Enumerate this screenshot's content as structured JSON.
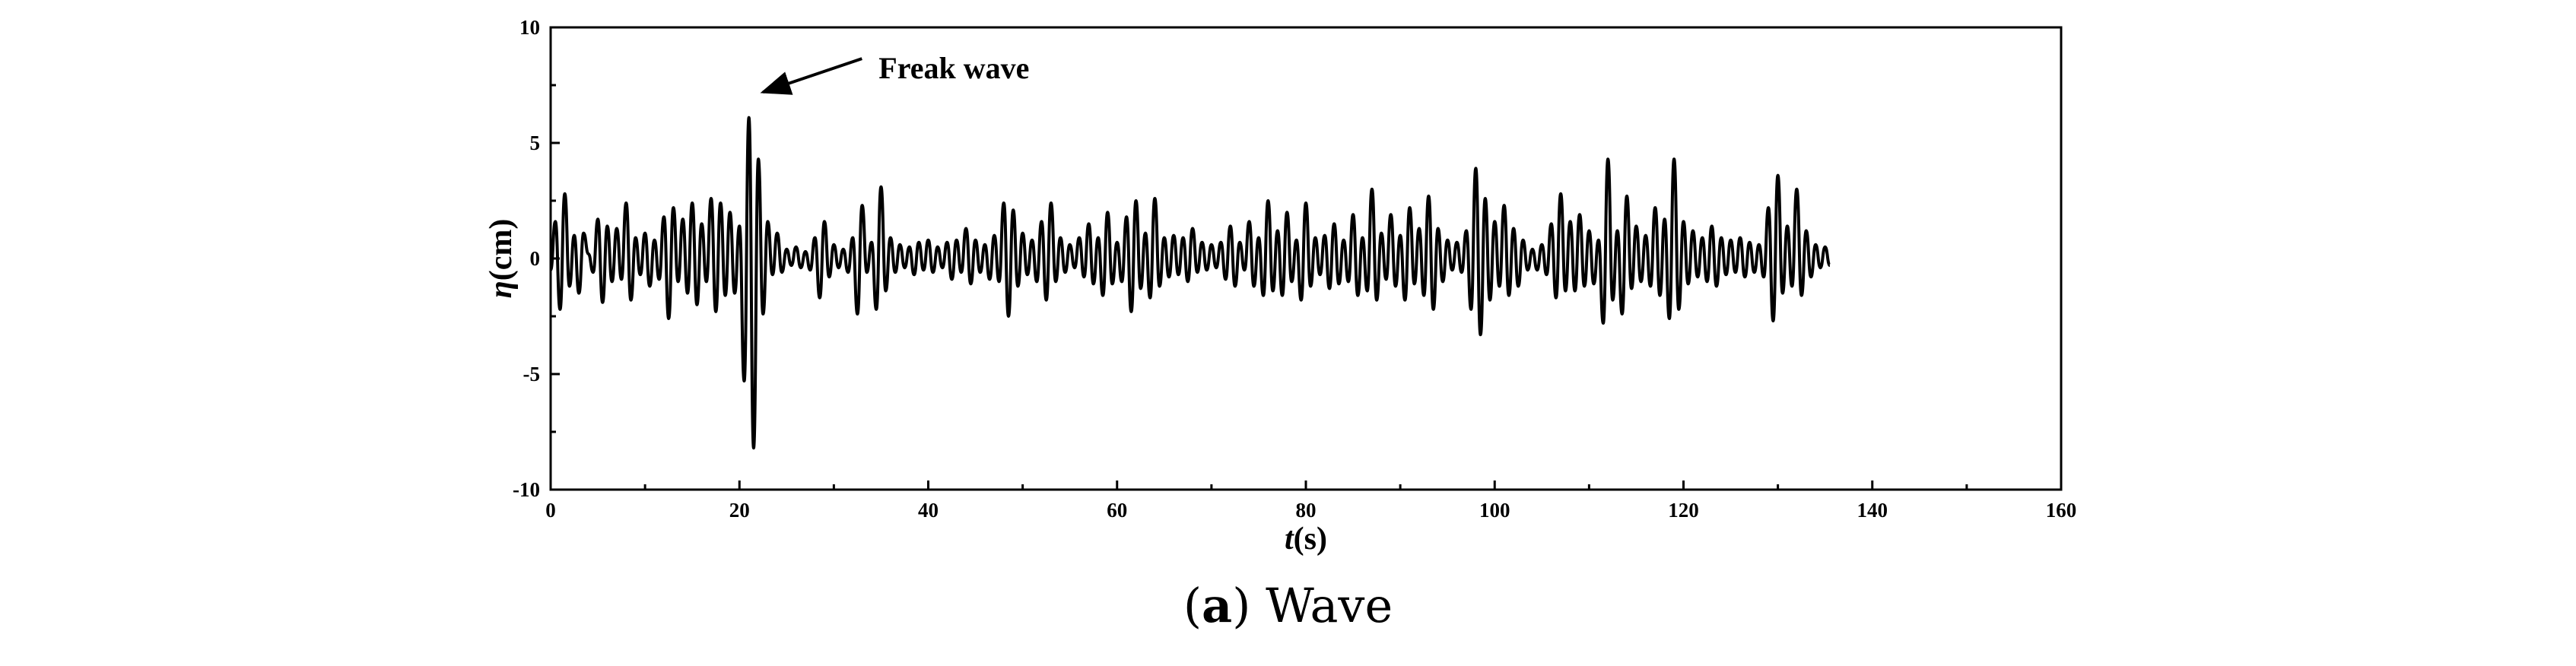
{
  "chart_data": {
    "type": "line",
    "title": "",
    "xlabel": {
      "var": "t",
      "unit": "(s)"
    },
    "ylabel": {
      "var": "η",
      "unit": "(cm)"
    },
    "xlim": [
      0,
      160
    ],
    "ylim": [
      -10,
      10
    ],
    "xticks": [
      "0",
      "20",
      "40",
      "60",
      "80",
      "100",
      "120",
      "140",
      "160"
    ],
    "yticks": [
      "10",
      "5",
      "0",
      "-5",
      "-10"
    ],
    "grid": false,
    "line_color": "#000000",
    "annotation": {
      "text": "Freak wave",
      "x": 22.5,
      "y": 7.2
    },
    "series": [
      {
        "x_start": 0,
        "x_step": 0.5,
        "values": [
          -0.5,
          1.6,
          -2.2,
          2.8,
          -1.2,
          1.0,
          -1.5,
          1.1,
          0.2,
          -0.6,
          1.7,
          -1.9,
          1.4,
          -1.0,
          1.3,
          -0.9,
          2.4,
          -1.8,
          0.9,
          -0.7,
          1.1,
          -1.2,
          0.8,
          -0.9,
          1.8,
          -2.6,
          2.2,
          -1.0,
          1.7,
          -1.5,
          2.4,
          -2.0,
          1.5,
          -1.0,
          2.6,
          -2.3,
          2.4,
          -1.6,
          2.0,
          -1.5,
          1.4,
          -5.3,
          6.1,
          -8.2,
          4.3,
          -2.4,
          1.6,
          -0.7,
          1.1,
          -0.6,
          0.4,
          -0.3,
          0.5,
          -0.4,
          0.3,
          -0.5,
          0.9,
          -1.7,
          1.6,
          -0.8,
          0.6,
          -0.4,
          0.4,
          -0.6,
          0.9,
          -2.4,
          2.3,
          -0.6,
          0.7,
          -2.2,
          3.1,
          -1.4,
          0.9,
          -0.6,
          0.6,
          -0.4,
          0.5,
          -0.7,
          0.7,
          -0.5,
          0.8,
          -0.6,
          0.5,
          -0.4,
          0.7,
          -0.9,
          0.8,
          -0.6,
          1.3,
          -1.1,
          0.8,
          -0.6,
          0.6,
          -0.9,
          1.0,
          -1.0,
          2.4,
          -2.5,
          2.1,
          -1.2,
          1.1,
          -0.7,
          0.8,
          -1.0,
          1.6,
          -1.8,
          2.4,
          -1.0,
          0.9,
          -0.6,
          0.6,
          -0.4,
          0.9,
          -0.8,
          1.5,
          -1.1,
          0.9,
          -1.6,
          2.0,
          -1.1,
          0.7,
          -1.0,
          1.8,
          -2.3,
          2.5,
          -1.3,
          1.1,
          -1.7,
          2.6,
          -1.2,
          0.9,
          -0.8,
          1.0,
          -0.7,
          0.9,
          -1.0,
          1.3,
          -0.6,
          0.7,
          -0.5,
          0.6,
          -0.4,
          0.7,
          -0.9,
          1.4,
          -1.2,
          0.7,
          -0.5,
          1.6,
          -1.2,
          0.9,
          -1.6,
          2.5,
          -1.4,
          1.2,
          -1.6,
          2.0,
          -1.0,
          0.8,
          -1.8,
          2.4,
          -1.2,
          0.9,
          -0.7,
          1.0,
          -1.3,
          1.5,
          -1.1,
          0.8,
          -1.0,
          1.9,
          -1.6,
          0.9,
          -1.4,
          3.0,
          -1.8,
          1.1,
          -0.9,
          1.9,
          -1.2,
          1.0,
          -1.8,
          2.2,
          -1.1,
          1.3,
          -1.6,
          2.7,
          -2.2,
          1.3,
          -1.0,
          0.8,
          -0.5,
          0.7,
          -0.6,
          1.2,
          -2.2,
          3.9,
          -3.3,
          2.6,
          -1.8,
          1.6,
          -1.2,
          2.3,
          -1.6,
          1.3,
          -1.2,
          0.8,
          -0.5,
          0.4,
          -0.5,
          0.6,
          -0.7,
          1.5,
          -1.7,
          2.8,
          -1.4,
          1.6,
          -1.4,
          1.9,
          -1.2,
          1.2,
          -1.1,
          0.8,
          -2.8,
          4.3,
          -1.8,
          1.2,
          -2.4,
          2.7,
          -1.3,
          1.4,
          -1.0,
          1.0,
          -1.2,
          2.2,
          -1.6,
          1.7,
          -2.6,
          4.3,
          -2.2,
          1.6,
          -1.1,
          1.2,
          -0.8,
          0.9,
          -1.0,
          1.4,
          -1.2,
          0.9,
          -0.7,
          0.8,
          -0.6,
          0.9,
          -0.8,
          0.7,
          -0.6,
          0.6,
          -0.8,
          2.2,
          -2.7,
          3.6,
          -1.5,
          1.4,
          -1.2,
          3.0,
          -1.6,
          1.2,
          -0.8,
          0.6,
          -0.4,
          0.5,
          -0.3
        ]
      }
    ]
  },
  "caption": {
    "open_paren": "(",
    "letter": "a",
    "rest": ") Wave"
  }
}
